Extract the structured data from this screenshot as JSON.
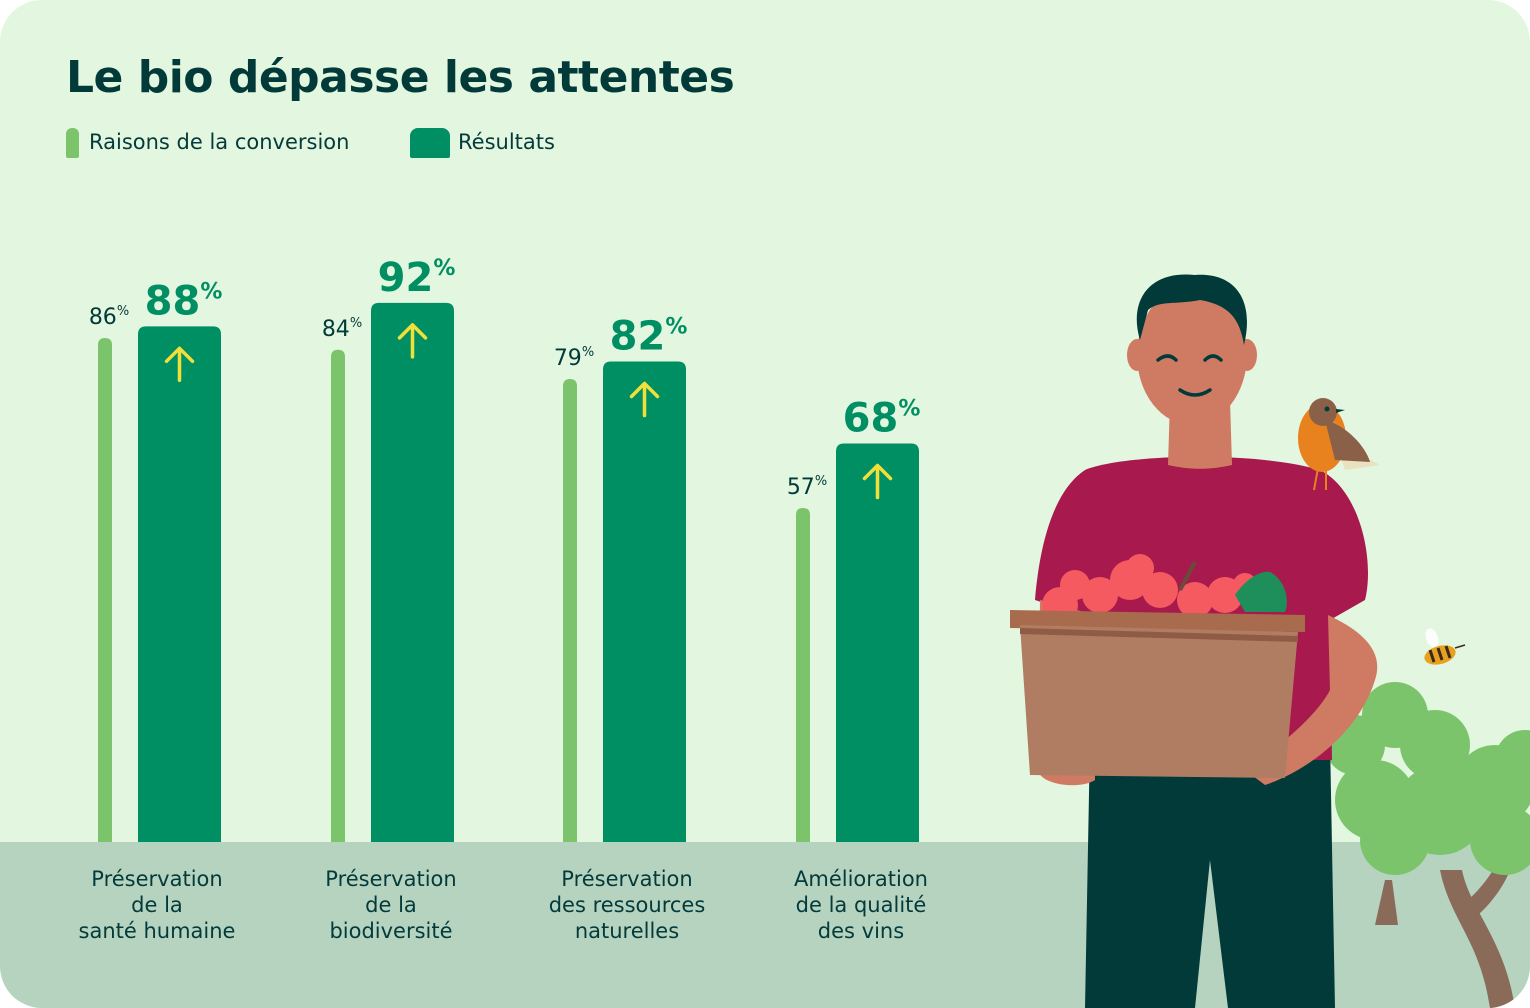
{
  "title": "Le bio dépasse les attentes",
  "legend": {
    "reasons_label": "Raisons de la conversion",
    "results_label": "Résultats"
  },
  "colors": {
    "background": "#e3f6df",
    "ground": "#b6d3c0",
    "reasons": "#7cc46b",
    "results": "#008f63",
    "arrow": "#f2e03a",
    "text_dark": "#023a3a"
  },
  "chart_data": {
    "type": "bar",
    "title": "Le bio dépasse les attentes",
    "categories": [
      "Préservation\nde la\nsanté humaine",
      "Préservation\nde la\nbiodiversité",
      "Préservation\ndes ressources\nnaturelles",
      "Amélioration\nde la qualité\ndes vins"
    ],
    "series": [
      {
        "name": "Raisons de la conversion",
        "values": [
          86,
          84,
          79,
          57
        ]
      },
      {
        "name": "Résultats",
        "values": [
          88,
          92,
          82,
          68
        ]
      }
    ],
    "unit": "%",
    "ylim": [
      0,
      100
    ],
    "grid": false,
    "legend_position": "top-left"
  },
  "illustration": {
    "icons": [
      "farmer",
      "grape-basket",
      "robin-bird",
      "bee",
      "trees"
    ]
  }
}
